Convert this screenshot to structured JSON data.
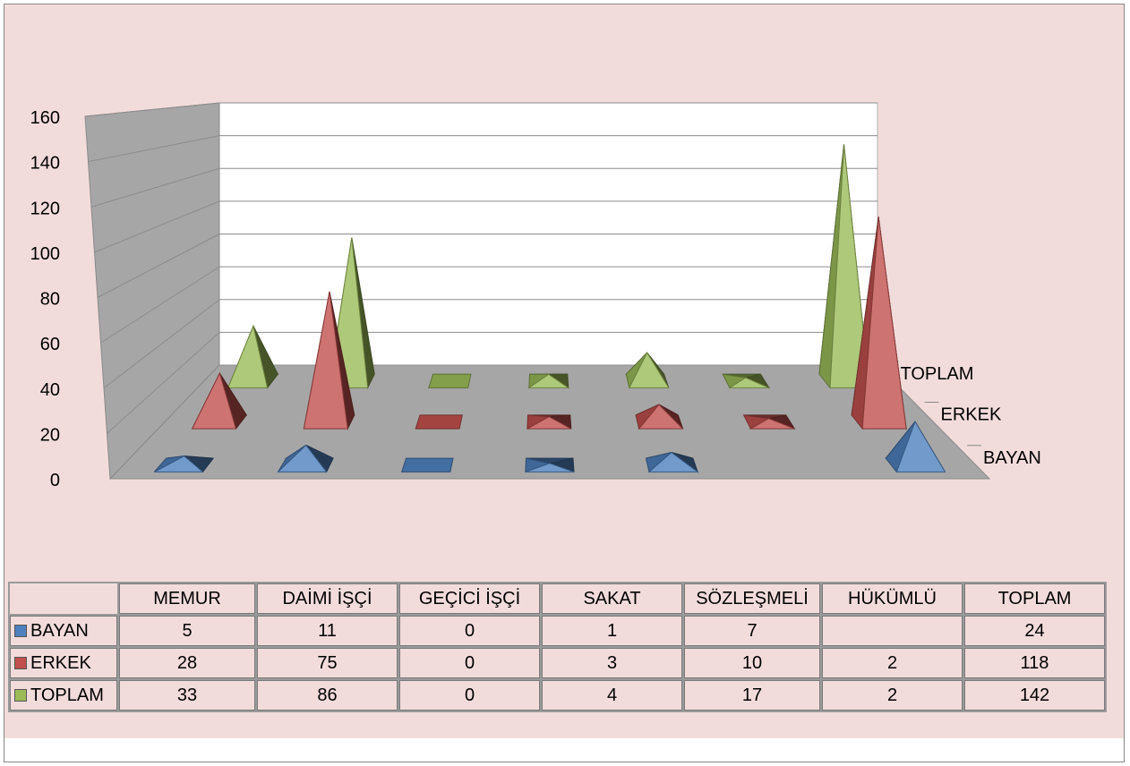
{
  "chart_data": {
    "type": "bar",
    "bar_shape": "pyramid",
    "categories": [
      "MEMUR",
      "DAİMİ İŞÇİ",
      "GEÇİCİ İŞÇİ",
      "SAKAT",
      "SÖZLEŞMELİ",
      "HÜKÜMLÜ",
      "TOPLAM"
    ],
    "series": [
      {
        "name": "BAYAN",
        "values": [
          5,
          11,
          0,
          1,
          7,
          null,
          24
        ],
        "labels": [
          "5",
          "11",
          "0",
          "1",
          "7",
          "",
          "24"
        ],
        "color": "#4f81bd"
      },
      {
        "name": "ERKEK",
        "values": [
          28,
          75,
          0,
          3,
          10,
          2,
          118
        ],
        "labels": [
          "28",
          "75",
          "0",
          "3",
          "10",
          "2",
          "118"
        ],
        "color": "#c0504d"
      },
      {
        "name": "TOPLAM",
        "values": [
          33,
          86,
          0,
          4,
          17,
          2,
          142
        ],
        "labels": [
          "33",
          "86",
          "0",
          "4",
          "17",
          "2",
          "142"
        ],
        "color": "#9bbb59"
      }
    ],
    "yticks": [
      "0",
      "20",
      "40",
      "60",
      "80",
      "100",
      "120",
      "140",
      "160"
    ],
    "ylim": [
      0,
      160
    ],
    "grid": true,
    "legend": "data-table-below"
  }
}
